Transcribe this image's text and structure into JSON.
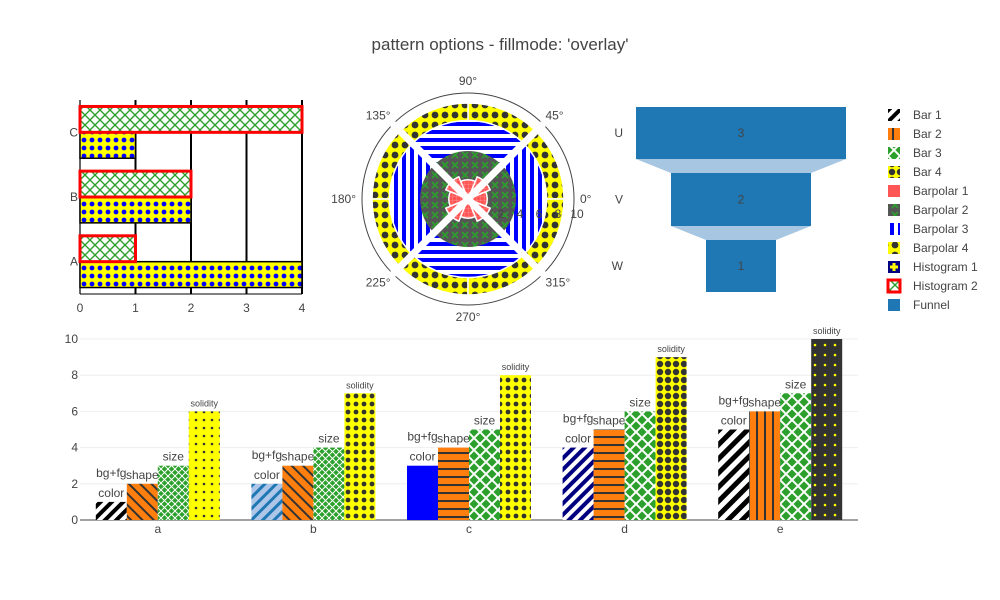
{
  "title": "pattern options - fillmode: 'overlay'",
  "colors": {
    "blue": "#1f77b4",
    "orange": "#ff7f0e",
    "green": "#2ca02c",
    "yellow": "#ffff00",
    "red": "#ff0000",
    "purewhite": "#ffffff",
    "navy": "#0000ff",
    "dark": "#333333"
  },
  "legend": [
    {
      "name": "Bar 1",
      "icon": "diagonal-hatch-icon"
    },
    {
      "name": "Bar 2",
      "icon": "vertical-orange-stripes-icon"
    },
    {
      "name": "Bar 3",
      "icon": "green-crosshatch-icon"
    },
    {
      "name": "Bar 4",
      "icon": "yellow-dots-icon"
    },
    {
      "name": "Barpolar 1",
      "icon": "red-square-icon"
    },
    {
      "name": "Barpolar 2",
      "icon": "dark-x-pattern-icon"
    },
    {
      "name": "Barpolar 3",
      "icon": "blue-vertical-lines-icon"
    },
    {
      "name": "Barpolar 4",
      "icon": "yellow-dark-dots-icon"
    },
    {
      "name": "Histogram 1",
      "icon": "navy-plus-icon"
    },
    {
      "name": "Histogram 2",
      "icon": "red-border-x-icon"
    },
    {
      "name": "Funnel",
      "icon": "blue-square-icon"
    }
  ],
  "chart_data": [
    {
      "type": "bar",
      "orientation": "h",
      "name": "histogram",
      "categories": [
        "A",
        "B",
        "C"
      ],
      "series": [
        {
          "name": "Histogram 1",
          "values": [
            4,
            2,
            1
          ],
          "pattern": "dots",
          "fg": "#0000ff",
          "bg": "#ffff00"
        },
        {
          "name": "Histogram 2",
          "values": [
            1,
            2,
            4
          ],
          "pattern": "x",
          "fg": "#2ca02c",
          "border": "#ff0000"
        }
      ],
      "xlim": [
        0,
        4
      ],
      "xticks": [
        0,
        1,
        2,
        3,
        4
      ]
    },
    {
      "type": "barpolar",
      "angular_ticks": [
        "90°",
        "45°",
        "0°",
        "315°",
        "270°",
        "225°",
        "180°",
        "135°"
      ],
      "radial_ticks": [
        "0",
        "2",
        "4",
        "6",
        "8",
        "10"
      ],
      "series": [
        {
          "name": "Barpolar 1",
          "r": [
            4,
            5,
            4,
            5,
            4,
            5,
            4,
            5
          ],
          "theta": [
            0,
            45,
            90,
            135,
            180,
            225,
            270,
            315
          ]
        },
        {
          "name": "Barpolar 2",
          "r": [
            6,
            6,
            6,
            6
          ],
          "theta": [
            45,
            135,
            225,
            315
          ]
        },
        {
          "name": "Barpolar 3",
          "r": [
            9,
            9,
            9,
            9
          ],
          "theta": [
            0,
            90,
            180,
            270
          ]
        },
        {
          "name": "Barpolar 4",
          "r": [
            11,
            11,
            11,
            11
          ],
          "theta": [
            45,
            135,
            225,
            315
          ]
        }
      ]
    },
    {
      "type": "funnel",
      "categories": [
        "U",
        "V",
        "W"
      ],
      "values": [
        3,
        2,
        1
      ]
    },
    {
      "type": "bar",
      "categories": [
        "a",
        "b",
        "c",
        "d",
        "e"
      ],
      "ylim": [
        0,
        10
      ],
      "yticks": [
        0,
        2,
        4,
        6,
        8,
        10
      ],
      "series": [
        {
          "name": "Bar 1",
          "values": [
            1,
            2,
            3,
            4,
            5
          ],
          "label": "color",
          "fg": [
            "#000000",
            "#1f77b4",
            "#0000ff",
            "#000080",
            "#000000"
          ],
          "bg": [
            "#ffffff",
            "#aec7e8",
            "#0000ff",
            "#ffffff",
            "#ffffff"
          ]
        },
        {
          "name": "Bar 2",
          "values": [
            2,
            3,
            4,
            5,
            6
          ],
          "label": "shape"
        },
        {
          "name": "Bar 3",
          "values": [
            3,
            4,
            5,
            6,
            7
          ],
          "label": "size"
        },
        {
          "name": "Bar 4",
          "values": [
            6,
            7,
            8,
            9,
            10
          ],
          "label": "solidity"
        }
      ],
      "extra_labels": [
        "bg+fg",
        "bg+fg",
        "bg+fg",
        "bg+fg",
        "bg+fg"
      ]
    }
  ]
}
